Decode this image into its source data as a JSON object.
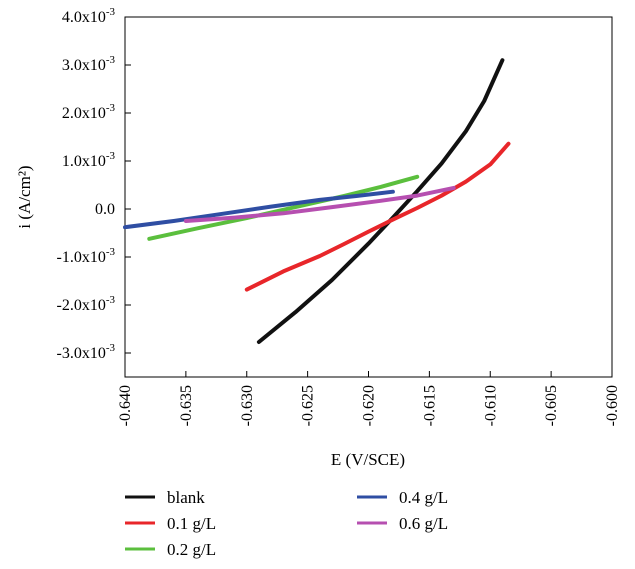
{
  "chart_data": {
    "type": "line",
    "xlabel": "E (V/SCE)",
    "ylabel": "i (A/cm²)",
    "xlim": [
      -0.64,
      -0.6
    ],
    "ylim": [
      -0.0035,
      0.004
    ],
    "x_ticks": [
      -0.64,
      -0.635,
      -0.63,
      -0.625,
      -0.62,
      -0.615,
      -0.61,
      -0.605,
      -0.6
    ],
    "x_tick_labels": [
      "-0.640",
      "-0.635",
      "-0.630",
      "-0.625",
      "-0.620",
      "-0.615",
      "-0.610",
      "-0.605",
      "-0.600"
    ],
    "y_ticks": [
      {
        "value": 0.004,
        "mantissa": "4.0x10",
        "exp": "-3"
      },
      {
        "value": 0.003,
        "mantissa": "3.0x10",
        "exp": "-3"
      },
      {
        "value": 0.002,
        "mantissa": "2.0x10",
        "exp": "-3"
      },
      {
        "value": 0.001,
        "mantissa": "1.0x10",
        "exp": "-3"
      },
      {
        "value": 0.0,
        "mantissa": "0.0",
        "exp": ""
      },
      {
        "value": -0.001,
        "mantissa": "-1.0x10",
        "exp": "-3"
      },
      {
        "value": -0.002,
        "mantissa": "-2.0x10",
        "exp": "-3"
      },
      {
        "value": -0.003,
        "mantissa": "-3.0x10",
        "exp": "-3"
      }
    ],
    "legend_position": "bottom",
    "series": [
      {
        "name": "blank",
        "color": "#111111",
        "x": [
          -0.629,
          -0.626,
          -0.623,
          -0.62,
          -0.618,
          -0.616,
          -0.614,
          -0.612,
          -0.6105,
          -0.609
        ],
        "y": [
          -0.00277,
          -0.00215,
          -0.00148,
          -0.00072,
          -0.00018,
          0.00037,
          0.00095,
          0.00162,
          0.00225,
          0.0031
        ]
      },
      {
        "name": "0.1 g/L",
        "color": "#e8262a",
        "x": [
          -0.63,
          -0.627,
          -0.624,
          -0.622,
          -0.62,
          -0.618,
          -0.616,
          -0.614,
          -0.612,
          -0.61,
          -0.6085
        ],
        "y": [
          -0.00168,
          -0.0013,
          -0.00098,
          -0.00073,
          -0.00047,
          -0.00022,
          2e-05,
          0.00028,
          0.00057,
          0.00093,
          0.00136
        ]
      },
      {
        "name": "0.2 g/L",
        "color": "#5bbf3d",
        "x": [
          -0.638,
          -0.634,
          -0.63,
          -0.626,
          -0.622,
          -0.619,
          -0.616
        ],
        "y": [
          -0.00062,
          -0.0004,
          -0.00019,
          4e-05,
          0.00027,
          0.00046,
          0.00067
        ]
      },
      {
        "name": "0.4 g/L",
        "color": "#2f4ea3",
        "x": [
          -0.64,
          -0.636,
          -0.632,
          -0.628,
          -0.624,
          -0.621,
          -0.618
        ],
        "y": [
          -0.00038,
          -0.00025,
          -0.0001,
          5e-05,
          0.00019,
          0.00027,
          0.00036
        ]
      },
      {
        "name": "0.6 g/L",
        "color": "#b64fb0",
        "x": [
          -0.635,
          -0.631,
          -0.627,
          -0.623,
          -0.619,
          -0.616,
          -0.613
        ],
        "y": [
          -0.00025,
          -0.00018,
          -9e-05,
          4e-05,
          0.00017,
          0.00028,
          0.00044
        ]
      }
    ]
  }
}
